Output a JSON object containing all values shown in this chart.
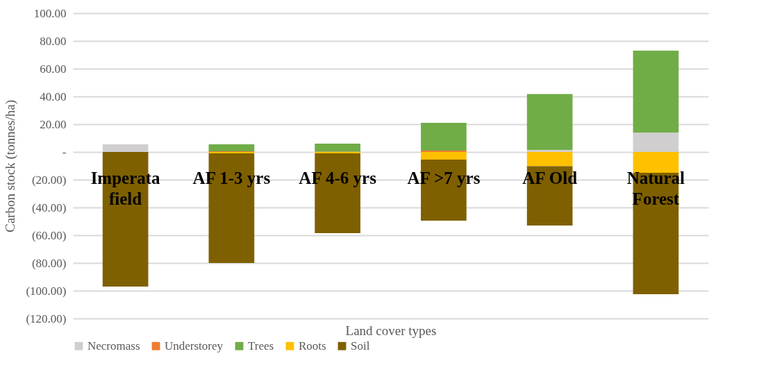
{
  "chart_data": {
    "type": "bar",
    "stacked": true,
    "xlabel": "Land cover types",
    "ylabel": "Carbon stock (tonnes/ha)",
    "categories": [
      "Imperata field",
      "AF 1-3 yrs",
      "AF 4-6 yrs",
      "AF >7 yrs",
      "AF Old",
      "Natural Forest"
    ],
    "series": [
      {
        "name": "Necromass",
        "color": "#d0cece",
        "values": [
          5.5,
          null,
          null,
          0,
          1.5,
          14
        ]
      },
      {
        "name": "Understorey",
        "color": "#ed7d31",
        "values": [
          0,
          0.5,
          0.3,
          1,
          0,
          0
        ]
      },
      {
        "name": "Trees",
        "color": "#70ad47",
        "values": [
          0,
          5,
          5.7,
          20,
          40.3,
          59
        ]
      },
      {
        "name": "Roots",
        "color": "#ffc000",
        "values": [
          0,
          -1,
          -1,
          -5.5,
          -10.3,
          -15
        ]
      },
      {
        "name": "Soil",
        "color": "#7f6000",
        "values": [
          -97,
          -79,
          -57.5,
          -44,
          -42.7,
          -87.5
        ]
      }
    ],
    "ylim": [
      -120,
      100
    ],
    "yticks": [
      {
        "value": -120,
        "label": "(120.00)"
      },
      {
        "value": -100,
        "label": "(100.00)"
      },
      {
        "value": -80,
        "label": "(80.00)"
      },
      {
        "value": -60,
        "label": "(60.00)"
      },
      {
        "value": -40,
        "label": "(40.00)"
      },
      {
        "value": -20,
        "label": "(20.00)"
      },
      {
        "value": 0,
        "label": "-"
      },
      {
        "value": 20,
        "label": "20.00"
      },
      {
        "value": 40,
        "label": "40.00"
      },
      {
        "value": 60,
        "label": "60.00"
      },
      {
        "value": 80,
        "label": "80.00"
      },
      {
        "value": 100,
        "label": "100.00"
      }
    ],
    "grid": "y",
    "legend": "bottom"
  }
}
